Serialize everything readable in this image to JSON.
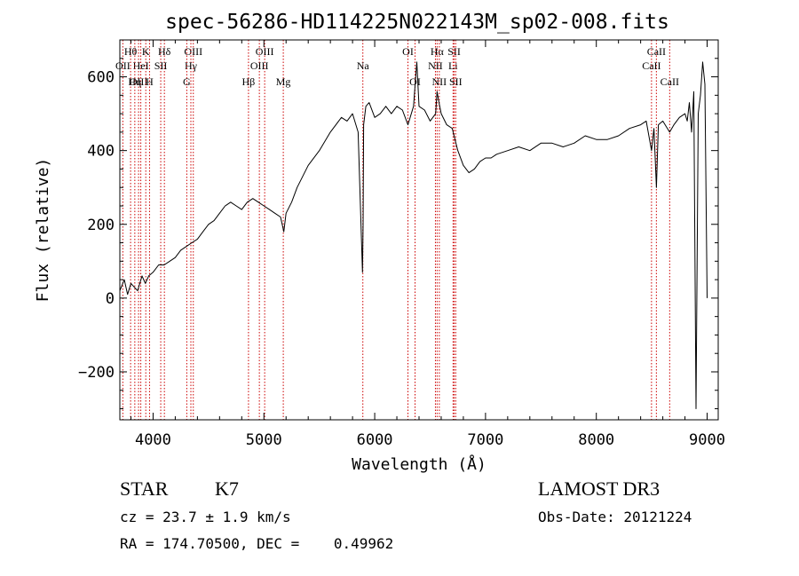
{
  "chart_data": {
    "type": "line",
    "title": "spec-56286-HD114225N022143M_sp02-008.fits",
    "xlabel": "Wavelength (Å)",
    "ylabel": "Flux (relative)",
    "xlim": [
      3700,
      9100
    ],
    "ylim": [
      -330,
      700
    ],
    "xticks": [
      4000,
      5000,
      6000,
      7000,
      8000,
      9000
    ],
    "yticks": [
      -200,
      0,
      200,
      400,
      600
    ],
    "xtick_labels": [
      "4000",
      "5000",
      "6000",
      "7000",
      "8000",
      "9000"
    ],
    "ytick_labels": [
      "−200",
      "0",
      "200",
      "400",
      "600"
    ],
    "line_color": "#000000",
    "marker_color": "#cc0000",
    "series": [
      {
        "name": "Flux",
        "x": [
          3700,
          3740,
          3770,
          3800,
          3830,
          3860,
          3900,
          3930,
          3960,
          4000,
          4050,
          4100,
          4150,
          4200,
          4250,
          4300,
          4350,
          4400,
          4450,
          4500,
          4550,
          4600,
          4650,
          4700,
          4750,
          4800,
          4850,
          4900,
          4950,
          5000,
          5050,
          5100,
          5150,
          5180,
          5200,
          5250,
          5300,
          5400,
          5500,
          5600,
          5700,
          5750,
          5800,
          5850,
          5890,
          5895,
          5900,
          5920,
          5950,
          6000,
          6050,
          6100,
          6150,
          6200,
          6250,
          6300,
          6350,
          6380,
          6400,
          6450,
          6500,
          6550,
          6563,
          6580,
          6600,
          6650,
          6700,
          6750,
          6800,
          6850,
          6900,
          6950,
          7000,
          7050,
          7100,
          7200,
          7300,
          7400,
          7500,
          7600,
          7700,
          7800,
          7900,
          8000,
          8100,
          8200,
          8300,
          8400,
          8450,
          8498,
          8520,
          8542,
          8560,
          8600,
          8662,
          8700,
          8750,
          8800,
          8820,
          8840,
          8860,
          8880,
          8900,
          8920,
          8940,
          8960,
          8980,
          9000
        ],
        "y": [
          20,
          50,
          10,
          40,
          30,
          20,
          60,
          40,
          60,
          70,
          90,
          90,
          100,
          110,
          130,
          140,
          150,
          160,
          180,
          200,
          210,
          230,
          250,
          260,
          250,
          240,
          260,
          270,
          260,
          250,
          240,
          230,
          220,
          180,
          230,
          260,
          300,
          360,
          400,
          450,
          490,
          480,
          500,
          450,
          70,
          200,
          470,
          520,
          530,
          490,
          500,
          520,
          500,
          520,
          510,
          470,
          520,
          640,
          520,
          510,
          480,
          500,
          560,
          530,
          500,
          470,
          460,
          400,
          360,
          340,
          350,
          370,
          380,
          380,
          390,
          400,
          410,
          400,
          420,
          420,
          410,
          420,
          440,
          430,
          430,
          440,
          460,
          470,
          480,
          400,
          460,
          300,
          470,
          480,
          450,
          470,
          490,
          500,
          480,
          530,
          450,
          560,
          -300,
          500,
          550,
          640,
          580,
          0
        ]
      }
    ],
    "line_markers": [
      {
        "label": "Hθ",
        "x": 3797,
        "row": 1
      },
      {
        "label": "OII",
        "x": 3727,
        "row": 2
      },
      {
        "label": "OIII",
        "x": 3869,
        "row": 3
      },
      {
        "label": "K",
        "x": 3934,
        "row": 1
      },
      {
        "label": "HeI",
        "x": 3889,
        "row": 2
      },
      {
        "label": "Hη",
        "x": 3835,
        "row": 3
      },
      {
        "label": "H",
        "x": 3968,
        "row": 3
      },
      {
        "label": "Hδ",
        "x": 4102,
        "row": 1
      },
      {
        "label": "SII",
        "x": 4069,
        "row": 2
      },
      {
        "label": "OIII",
        "x": 4363,
        "row": 1
      },
      {
        "label": "Hγ",
        "x": 4341,
        "row": 2
      },
      {
        "label": "G",
        "x": 4304,
        "row": 3
      },
      {
        "label": "Hβ",
        "x": 4861,
        "row": 3
      },
      {
        "label": "OIII",
        "x": 5007,
        "row": 1
      },
      {
        "label": "OIII",
        "x": 4959,
        "row": 2
      },
      {
        "label": "Mg",
        "x": 5175,
        "row": 3
      },
      {
        "label": "Na",
        "x": 5893,
        "row": 2
      },
      {
        "label": "OI",
        "x": 6300,
        "row": 1
      },
      {
        "label": "OI",
        "x": 6364,
        "row": 3
      },
      {
        "label": "Hα",
        "x": 6563,
        "row": 1
      },
      {
        "label": "SII",
        "x": 6717,
        "row": 1
      },
      {
        "label": "NII",
        "x": 6548,
        "row": 2
      },
      {
        "label": "Li",
        "x": 6707,
        "row": 2
      },
      {
        "label": "NII",
        "x": 6583,
        "row": 3
      },
      {
        "label": "SII",
        "x": 6731,
        "row": 3
      },
      {
        "label": "CaII",
        "x": 8542,
        "row": 1
      },
      {
        "label": "CaII",
        "x": 8498,
        "row": 2
      },
      {
        "label": "CaII",
        "x": 8662,
        "row": 3
      }
    ]
  },
  "info": {
    "class": "STAR",
    "subclass": "K7",
    "survey": "LAMOST DR3",
    "redshift": "cz = 23.7 ± 1.9 km/s",
    "obs_date": "Obs-Date: 20121224",
    "coords": "RA = 174.70500, DEC =    0.49962"
  }
}
